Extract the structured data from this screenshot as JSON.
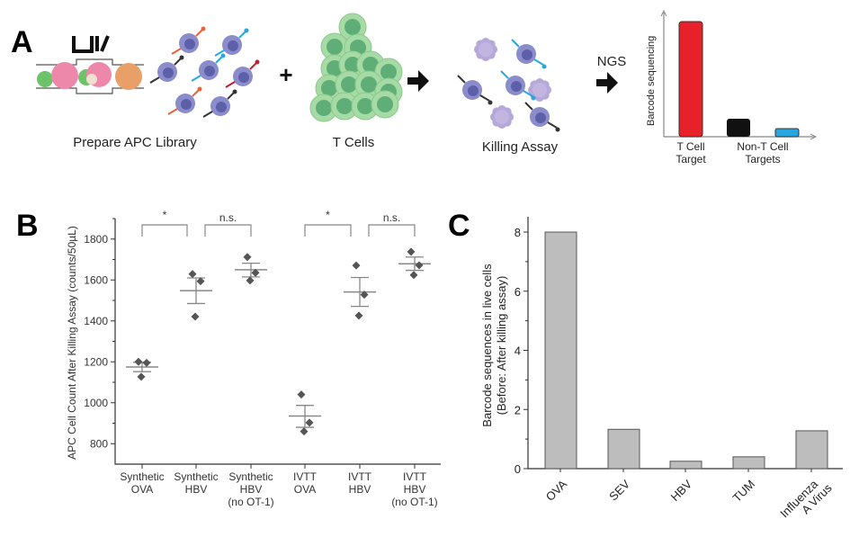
{
  "panel_a": {
    "label": "A",
    "steps": [
      "Prepare APC Library",
      "T Cells",
      "Killing Assay"
    ],
    "plus": "+",
    "ngs": "NGS",
    "schematic_chart": {
      "ylabel": "Barcode sequencing",
      "categories": [
        "T Cell\nTarget",
        "Non-T Cell\nTargets"
      ],
      "bars": [
        {
          "color": "#e8202a"
        },
        {
          "color": "#111111"
        },
        {
          "color": "#2aa6de"
        }
      ]
    }
  },
  "chart_data": [
    {
      "panel": "B",
      "type": "scatter",
      "ylabel": "APC Cell Count After Killing Assay (counts/50µL)",
      "ylim": [
        700,
        1900
      ],
      "yticks": [
        800,
        1000,
        1200,
        1400,
        1600,
        1800
      ],
      "categories": [
        "Synthetic\nOVA",
        "Synthetic\nHBV",
        "Synthetic\nHBV\n(no OT-1)",
        "IVTT\nOVA",
        "IVTT\nHBV",
        "IVTT\nHBV\n(no OT-1)"
      ],
      "points": [
        [
          1200,
          1195,
          1127
        ],
        [
          1629,
          1594,
          1421
        ],
        [
          1712,
          1635,
          1597
        ],
        [
          1040,
          903,
          860
        ],
        [
          1671,
          1528,
          1426
        ],
        [
          1738,
          1672,
          1624
        ]
      ],
      "mean": [
        1175,
        1548,
        1650,
        935,
        1541,
        1679
      ],
      "err_low": [
        1152,
        1485,
        1615,
        880,
        1471,
        1647
      ],
      "err_high": [
        1198,
        1610,
        1682,
        987,
        1612,
        1712
      ],
      "comparisons": [
        {
          "from": 0,
          "to": 1,
          "label": "*"
        },
        {
          "from": 1,
          "to": 2,
          "label": "n.s."
        },
        {
          "from": 3,
          "to": 4,
          "label": "*"
        },
        {
          "from": 4,
          "to": 5,
          "label": "n.s."
        }
      ],
      "marker_color": "#555555",
      "line_color": "#888888"
    },
    {
      "panel": "C",
      "type": "bar",
      "ylabel": [
        "Barcode sequences in live cells",
        "(Before: After killing assay)"
      ],
      "ylim": [
        0,
        8.2
      ],
      "yticks": [
        0,
        2,
        4,
        6,
        8
      ],
      "categories": [
        "OVA",
        "SEV",
        "HBV",
        "TUM",
        "Influenza\nA Virus"
      ],
      "values": [
        8.0,
        1.33,
        0.25,
        0.4,
        1.28
      ],
      "bar_color": "#bdbdbd"
    }
  ],
  "labels": {
    "b": "B",
    "c": "C"
  }
}
